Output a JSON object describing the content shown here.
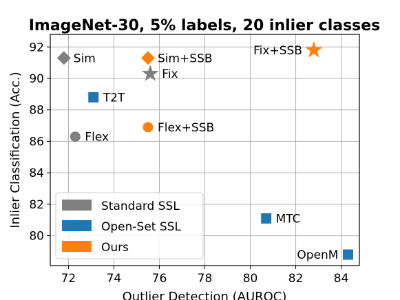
{
  "chart_data": {
    "type": "scatter",
    "title": "ImageNet-30, 5% labels, 20 inlier classes",
    "xlabel": "Outlier Detection (AUROC)",
    "ylabel": "Inlier Classification (Acc.)",
    "xlim": [
      71.2,
      84.8
    ],
    "ylim": [
      78.1,
      92.8
    ],
    "xticks": [
      72,
      74,
      76,
      78,
      80,
      82,
      84
    ],
    "yticks": [
      80,
      82,
      84,
      86,
      88,
      90,
      92
    ],
    "grid": true,
    "legend_position": "lower-left",
    "categories": [
      {
        "name": "Standard SSL",
        "color": "#808080"
      },
      {
        "name": "Open-Set SSL",
        "color": "#1f77b4"
      },
      {
        "name": "Ours",
        "color": "#ff7f0e"
      }
    ],
    "points": [
      {
        "label": "Sim",
        "x": 71.8,
        "y": 91.3,
        "marker": "diamond",
        "group": "Standard SSL",
        "label_side": "right"
      },
      {
        "label": "Fix",
        "x": 75.6,
        "y": 90.3,
        "marker": "star",
        "group": "Standard SSL",
        "label_side": "right"
      },
      {
        "label": "Flex",
        "x": 72.3,
        "y": 86.3,
        "marker": "circle",
        "group": "Standard SSL",
        "label_side": "right"
      },
      {
        "label": "T2T",
        "x": 73.1,
        "y": 88.8,
        "marker": "square",
        "group": "Open-Set SSL",
        "label_side": "right"
      },
      {
        "label": "MTC",
        "x": 80.7,
        "y": 81.1,
        "marker": "square",
        "group": "Open-Set SSL",
        "label_side": "right"
      },
      {
        "label": "OpenM",
        "x": 84.3,
        "y": 78.8,
        "marker": "square",
        "group": "Open-Set SSL",
        "label_side": "left"
      },
      {
        "label": "Sim+SSB",
        "x": 75.5,
        "y": 91.3,
        "marker": "diamond",
        "group": "Ours",
        "label_side": "right"
      },
      {
        "label": "Flex+SSB",
        "x": 75.5,
        "y": 86.9,
        "marker": "circle",
        "group": "Ours",
        "label_side": "right"
      },
      {
        "label": "Fix+SSB",
        "x": 82.8,
        "y": 91.8,
        "marker": "star",
        "group": "Ours",
        "label_side": "left"
      }
    ]
  }
}
